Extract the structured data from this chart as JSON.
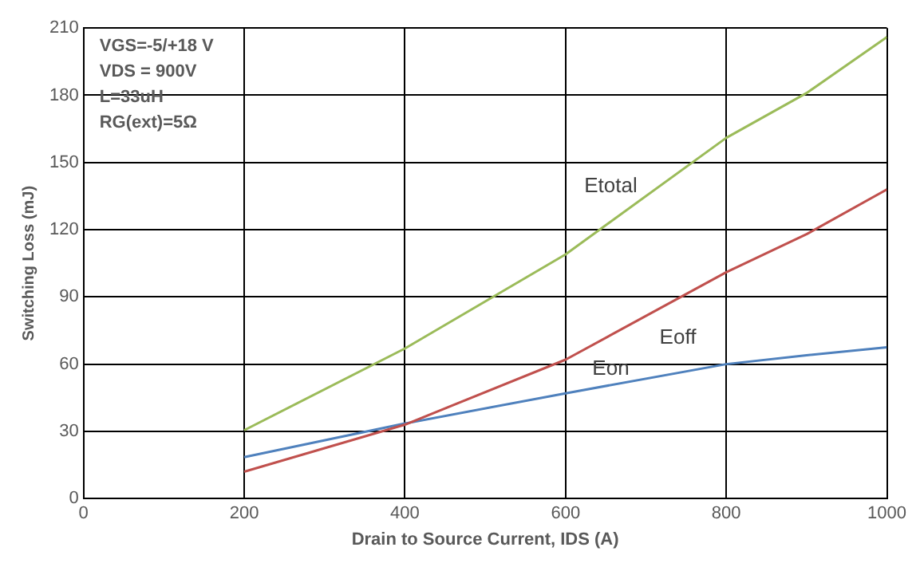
{
  "chart_data": {
    "type": "line",
    "xlabel": "Drain to Source Current, IDS (A)",
    "ylabel": "Switching Loss (mJ)",
    "x": [
      200,
      400,
      600,
      800,
      900,
      1000
    ],
    "series": [
      {
        "name": "Etotal",
        "color": "#9bbb59",
        "values": [
          30.5,
          67,
          109,
          161,
          181,
          206
        ]
      },
      {
        "name": "Eoff",
        "color": "#c0504d",
        "values": [
          12,
          33,
          62,
          101,
          118,
          138
        ]
      },
      {
        "name": "Eon",
        "color": "#4f81bd",
        "values": [
          18.5,
          33.5,
          47,
          60,
          64,
          67.5
        ]
      }
    ],
    "xlim": [
      0,
      1000
    ],
    "xticks": [
      0,
      200,
      400,
      600,
      800,
      1000
    ],
    "ylim": [
      0,
      210
    ],
    "yticks": [
      0,
      30,
      60,
      90,
      120,
      150,
      180,
      210
    ],
    "grid": true,
    "legend": false,
    "marker": "none",
    "line_style": "solid",
    "annotations": [
      "VGS=-5/+18 V",
      "VDS = 900V",
      "L=33uH",
      "RG(ext)=5Ω"
    ]
  }
}
